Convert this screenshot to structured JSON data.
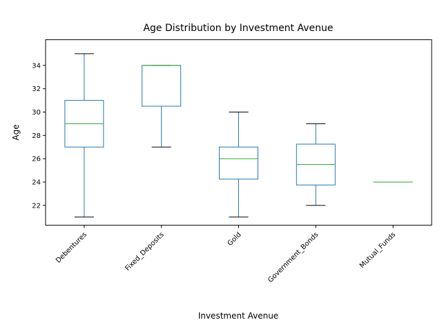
{
  "chart_data": {
    "type": "box",
    "title": "Age Distribution by Investment Avenue",
    "xlabel": "Investment Avenue",
    "ylabel": "Age",
    "ylim": [
      20.3,
      36.2
    ],
    "yticks": [
      22,
      24,
      26,
      28,
      30,
      32,
      34
    ],
    "grid": false,
    "colors": {
      "box": "#1f77b4",
      "median": "#2ca02c",
      "whisker": "#1f77b4",
      "cap": "#000000",
      "frame": "#000000"
    },
    "categories": [
      "Debentures",
      "Fixed_Deposits",
      "Gold",
      "Government_Bonds",
      "Mutual_Funds"
    ],
    "boxes": [
      {
        "name": "Debentures",
        "whislo": 21,
        "q1": 27,
        "med": 29,
        "q3": 31,
        "whishi": 35
      },
      {
        "name": "Fixed_Deposits",
        "whislo": 27,
        "q1": 30.5,
        "med": 34,
        "q3": 34,
        "whishi": 34
      },
      {
        "name": "Gold",
        "whislo": 21,
        "q1": 24.25,
        "med": 26,
        "q3": 27,
        "whishi": 30
      },
      {
        "name": "Government_Bonds",
        "whislo": 22,
        "q1": 23.75,
        "med": 25.5,
        "q3": 27.25,
        "whishi": 29
      },
      {
        "name": "Mutual_Funds",
        "whislo": 24,
        "q1": 24,
        "med": 24,
        "q3": 24,
        "whishi": 24
      }
    ]
  }
}
